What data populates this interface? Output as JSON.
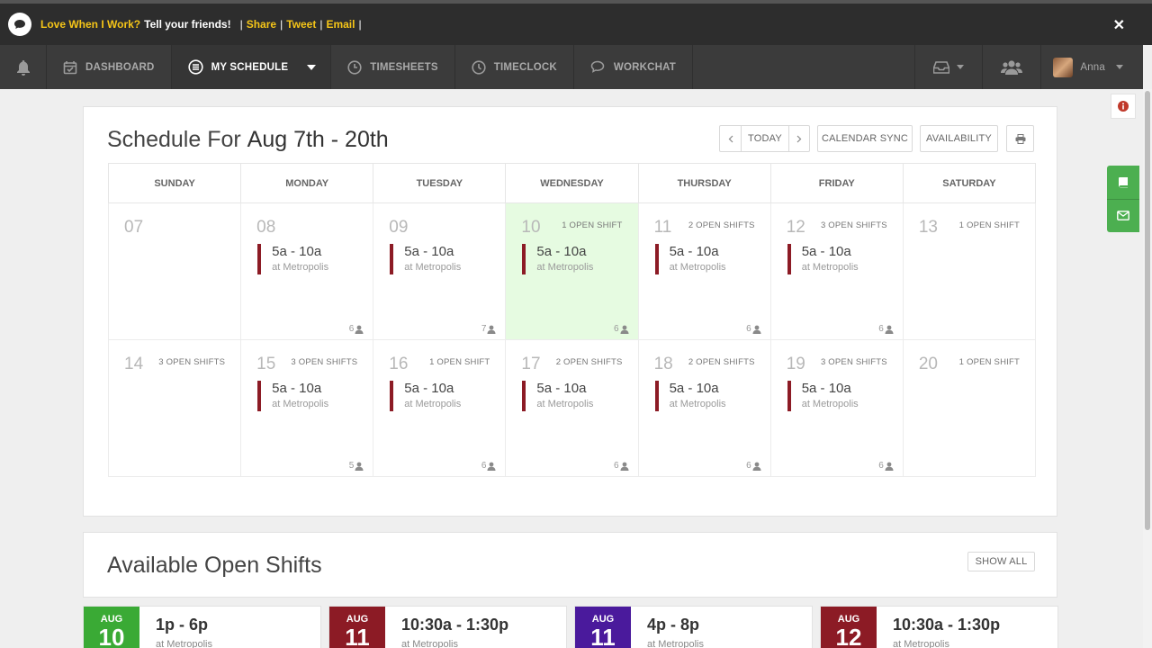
{
  "promo": {
    "love": "Love When I Work?",
    "tell": "Tell your friends!",
    "sep1": "|",
    "share": "Share",
    "sep2": "|",
    "tweet": "Tweet",
    "sep3": "|",
    "email": "Email",
    "sep4": "|",
    "close": "✕"
  },
  "nav": {
    "dashboard": "DASHBOARD",
    "my_schedule": "MY SCHEDULE",
    "timesheets": "TIMESHEETS",
    "timeclock": "TIMECLOCK",
    "workchat": "WORKCHAT",
    "user": "Anna"
  },
  "schedule": {
    "title_prefix": "Schedule For",
    "title_range": "Aug 7th - 20th",
    "today_label": "TODAY",
    "calendar_sync_label": "CALENDAR SYNC",
    "availability_label": "AVAILABILITY"
  },
  "weekdays": [
    "SUNDAY",
    "MONDAY",
    "TUESDAY",
    "WEDNESDAY",
    "THURSDAY",
    "FRIDAY",
    "SATURDAY"
  ],
  "weeks": [
    [
      {
        "day": "07",
        "open": "",
        "time": "",
        "loc": "",
        "count": ""
      },
      {
        "day": "08",
        "open": "",
        "time": "5a - 10a",
        "loc": "at Metropolis",
        "count": "6"
      },
      {
        "day": "09",
        "open": "",
        "time": "5a - 10a",
        "loc": "at Metropolis",
        "count": "7"
      },
      {
        "day": "10",
        "open": "1 OPEN SHIFT",
        "time": "5a - 10a",
        "loc": "at Metropolis",
        "count": "6",
        "today": true
      },
      {
        "day": "11",
        "open": "2 OPEN SHIFTS",
        "time": "5a - 10a",
        "loc": "at Metropolis",
        "count": "6"
      },
      {
        "day": "12",
        "open": "3 OPEN SHIFTS",
        "time": "5a - 10a",
        "loc": "at Metropolis",
        "count": "6"
      },
      {
        "day": "13",
        "open": "1 OPEN SHIFT",
        "time": "",
        "loc": "",
        "count": ""
      }
    ],
    [
      {
        "day": "14",
        "open": "3 OPEN SHIFTS",
        "time": "",
        "loc": "",
        "count": ""
      },
      {
        "day": "15",
        "open": "3 OPEN SHIFTS",
        "time": "5a - 10a",
        "loc": "at Metropolis",
        "count": "5"
      },
      {
        "day": "16",
        "open": "1 OPEN SHIFT",
        "time": "5a - 10a",
        "loc": "at Metropolis",
        "count": "6"
      },
      {
        "day": "17",
        "open": "2 OPEN SHIFTS",
        "time": "5a - 10a",
        "loc": "at Metropolis",
        "count": "6"
      },
      {
        "day": "18",
        "open": "2 OPEN SHIFTS",
        "time": "5a - 10a",
        "loc": "at Metropolis",
        "count": "6"
      },
      {
        "day": "19",
        "open": "3 OPEN SHIFTS",
        "time": "5a - 10a",
        "loc": "at Metropolis",
        "count": "6"
      },
      {
        "day": "20",
        "open": "1 OPEN SHIFT",
        "time": "",
        "loc": "",
        "count": ""
      }
    ]
  ],
  "open_shifts": {
    "title": "Available Open Shifts",
    "show_all_label": "SHOW ALL",
    "items": [
      {
        "month": "AUG",
        "day": "10",
        "time": "1p - 6p",
        "loc": "at Metropolis",
        "color": "#3aaa35"
      },
      {
        "month": "AUG",
        "day": "11",
        "time": "10:30a - 1:30p",
        "loc": "at Metropolis",
        "color": "#8c1b25"
      },
      {
        "month": "AUG",
        "day": "11",
        "time": "4p - 8p",
        "loc": "at Metropolis",
        "color": "#4a1a9c"
      },
      {
        "month": "AUG",
        "day": "12",
        "time": "10:30a - 1:30p",
        "loc": "at Metropolis",
        "color": "#8c1b25"
      }
    ]
  },
  "colors": {
    "promo_highlight": "#f5c518",
    "shift_bar": "#8c1b25",
    "today_bg": "#e6fbe1",
    "side_tab": "#4caf50"
  }
}
